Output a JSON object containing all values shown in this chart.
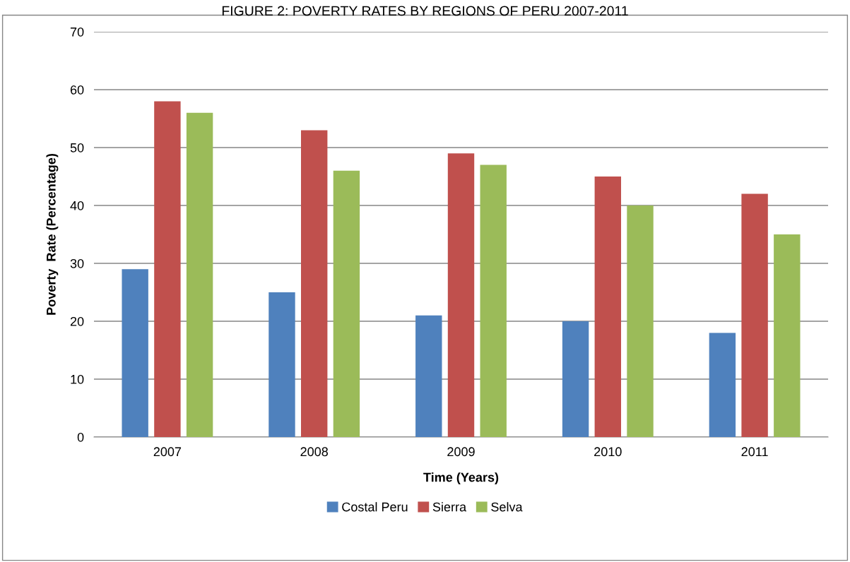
{
  "chart_data": {
    "type": "bar",
    "title": "FIGURE 2: POVERTY RATES BY REGIONS OF PERU 2007-2011",
    "xlabel": "Time (Years)",
    "ylabel": "Poverty  Rate (Percentage)",
    "categories": [
      "2007",
      "2008",
      "2009",
      "2010",
      "2011"
    ],
    "series": [
      {
        "name": "Costal Peru",
        "color": "#4f81bd",
        "values": [
          29,
          25,
          21,
          20,
          18
        ]
      },
      {
        "name": "Sierra",
        "color": "#c0504d",
        "values": [
          58,
          53,
          49,
          45,
          42
        ]
      },
      {
        "name": "Selva",
        "color": "#9bbb59",
        "values": [
          56,
          46,
          47,
          40,
          35
        ]
      }
    ],
    "ylim": [
      0,
      70
    ],
    "yticks": [
      0,
      10,
      20,
      30,
      40,
      50,
      60,
      70
    ],
    "grid": "y",
    "legend": "bottom"
  }
}
